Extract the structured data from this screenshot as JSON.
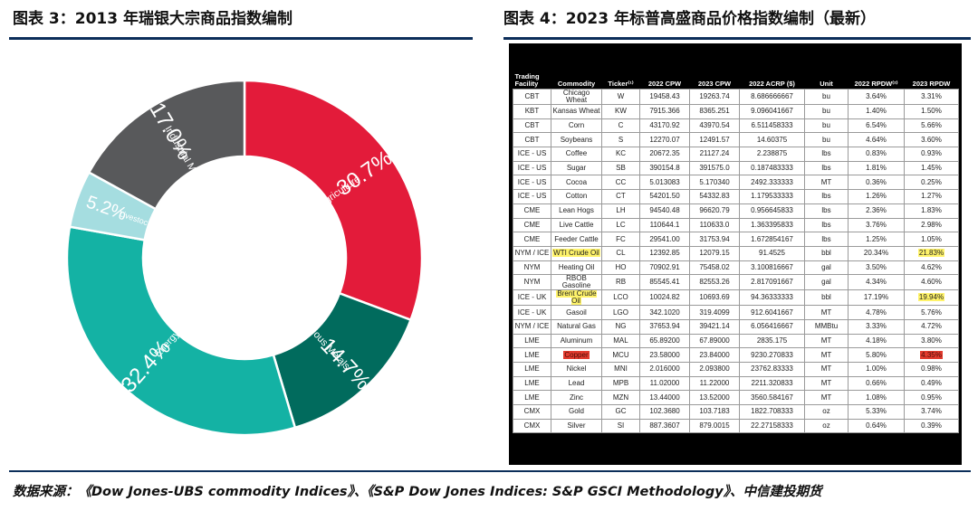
{
  "left_title": "图表 3：2013 年瑞银大宗商品指数编制",
  "right_title": "图表 4：2023 年标普高盛商品价格指数编制（最新）",
  "source_note": "数据来源：《Dow Jones-UBS commodity Indices》、《S&P Dow Jones Indices: S&P GSCI Methodology》、中信建投期货",
  "colors": {
    "agriculture": "#e31b3a",
    "precious_metals": "#016b5d",
    "energy": "#14b2a4",
    "livestock": "#a5dde0",
    "industrial_metals": "#58595b",
    "rule": "#0c2e5a"
  },
  "chart_data": [
    {
      "type": "pie",
      "style": "donut",
      "title": "",
      "start_angle_deg": 0,
      "direction": "clockwise",
      "slices": [
        {
          "label": "Agriculture",
          "value": 30.7,
          "value_label": "30.7%",
          "color": "#e31b3a"
        },
        {
          "label": "Precious Metals",
          "value": 14.7,
          "value_label": "14.7%",
          "color": "#016b5d"
        },
        {
          "label": "Energy",
          "value": 32.4,
          "value_label": "32.4%",
          "color": "#14b2a4"
        },
        {
          "label": "Livestock",
          "value": 5.2,
          "value_label": "5.2%",
          "color": "#a5dde0"
        },
        {
          "label": "Industrial Metals",
          "value": 17.0,
          "value_label": "17.0%",
          "color": "#58595b"
        }
      ]
    },
    {
      "type": "table",
      "columns": [
        "Trading Facility",
        "Commodity",
        "Ticker⁽¹⁾",
        "2022 CPW",
        "2023 CPW",
        "2022 ACRP ($)",
        "Unit",
        "2022 RPDW⁽²⁾",
        "2023 RPDW"
      ],
      "rows": [
        {
          "cells": [
            "CBT",
            "Chicago Wheat",
            "W",
            "19458.43",
            "19263.74",
            "8.686666667",
            "bu",
            "3.64%",
            "3.31%"
          ]
        },
        {
          "cells": [
            "KBT",
            "Kansas Wheat",
            "KW",
            "7915.366",
            "8365.251",
            "9.096041667",
            "bu",
            "1.40%",
            "1.50%"
          ]
        },
        {
          "cells": [
            "CBT",
            "Corn",
            "C",
            "43170.92",
            "43970.54",
            "6.511458333",
            "bu",
            "6.54%",
            "5.66%"
          ]
        },
        {
          "cells": [
            "CBT",
            "Soybeans",
            "S",
            "12270.07",
            "12491.57",
            "14.60375",
            "bu",
            "4.64%",
            "3.60%"
          ]
        },
        {
          "cells": [
            "ICE - US",
            "Coffee",
            "KC",
            "20672.35",
            "21127.24",
            "2.238875",
            "lbs",
            "0.83%",
            "0.93%"
          ]
        },
        {
          "cells": [
            "ICE - US",
            "Sugar",
            "SB",
            "390154.8",
            "391575.0",
            "0.187483333",
            "lbs",
            "1.81%",
            "1.45%"
          ]
        },
        {
          "cells": [
            "ICE - US",
            "Cocoa",
            "CC",
            "5.013083",
            "5.170340",
            "2492.333333",
            "MT",
            "0.36%",
            "0.25%"
          ]
        },
        {
          "cells": [
            "ICE - US",
            "Cotton",
            "CT",
            "54201.50",
            "54332.83",
            "1.179533333",
            "lbs",
            "1.26%",
            "1.27%"
          ]
        },
        {
          "cells": [
            "CME",
            "Lean Hogs",
            "LH",
            "94540.48",
            "96620.79",
            "0.956645833",
            "lbs",
            "2.36%",
            "1.83%"
          ]
        },
        {
          "cells": [
            "CME",
            "Live Cattle",
            "LC",
            "110644.1",
            "110633.0",
            "1.363395833",
            "lbs",
            "3.76%",
            "2.98%"
          ]
        },
        {
          "cells": [
            "CME",
            "Feeder Cattle",
            "FC",
            "29541.00",
            "31753.94",
            "1.672854167",
            "lbs",
            "1.25%",
            "1.05%"
          ]
        },
        {
          "cells": [
            "NYM / ICE",
            "WTI Crude Oil",
            "CL",
            "12392.85",
            "12079.15",
            "91.4525",
            "bbl",
            "20.34%",
            "21.83%"
          ],
          "highlight": {
            "1": "yellow",
            "8": "yellow"
          }
        },
        {
          "cells": [
            "NYM",
            "Heating Oil",
            "HO",
            "70902.91",
            "75458.02",
            "3.100816667",
            "gal",
            "3.50%",
            "4.62%"
          ]
        },
        {
          "cells": [
            "NYM",
            "RBOB Gasoline",
            "RB",
            "85545.41",
            "82553.26",
            "2.817091667",
            "gal",
            "4.34%",
            "4.60%"
          ]
        },
        {
          "cells": [
            "ICE - UK",
            "Brent Crude Oil",
            "LCO",
            "10024.82",
            "10693.69",
            "94.36333333",
            "bbl",
            "17.19%",
            "19.94%"
          ],
          "highlight": {
            "1": "yellow",
            "8": "yellow"
          }
        },
        {
          "cells": [
            "ICE - UK",
            "Gasoil",
            "LGO",
            "342.1020",
            "319.4099",
            "912.6041667",
            "MT",
            "4.78%",
            "5.76%"
          ]
        },
        {
          "cells": [
            "NYM / ICE",
            "Natural Gas",
            "NG",
            "37653.94",
            "39421.14",
            "6.056416667",
            "MMBtu",
            "3.33%",
            "4.72%"
          ]
        },
        {
          "cells": [
            "LME",
            "Aluminum",
            "MAL",
            "65.89200",
            "67.89000",
            "2835.175",
            "MT",
            "4.18%",
            "3.80%"
          ]
        },
        {
          "cells": [
            "LME",
            "Copper",
            "MCU",
            "23.58000",
            "23.84000",
            "9230.270833",
            "MT",
            "5.80%",
            "4.35%"
          ],
          "highlight": {
            "1": "red",
            "8": "red"
          }
        },
        {
          "cells": [
            "LME",
            "Nickel",
            "MNI",
            "2.016000",
            "2.093800",
            "23762.83333",
            "MT",
            "1.00%",
            "0.98%"
          ]
        },
        {
          "cells": [
            "LME",
            "Lead",
            "MPB",
            "11.02000",
            "11.22000",
            "2211.320833",
            "MT",
            "0.66%",
            "0.49%"
          ]
        },
        {
          "cells": [
            "LME",
            "Zinc",
            "MZN",
            "13.44000",
            "13.52000",
            "3560.584167",
            "MT",
            "1.08%",
            "0.95%"
          ]
        },
        {
          "cells": [
            "CMX",
            "Gold",
            "GC",
            "102.3680",
            "103.7183",
            "1822.708333",
            "oz",
            "5.33%",
            "3.74%"
          ]
        },
        {
          "cells": [
            "CMX",
            "Silver",
            "SI",
            "887.3607",
            "879.0015",
            "22.27158333",
            "oz",
            "0.64%",
            "0.39%"
          ]
        }
      ]
    }
  ]
}
